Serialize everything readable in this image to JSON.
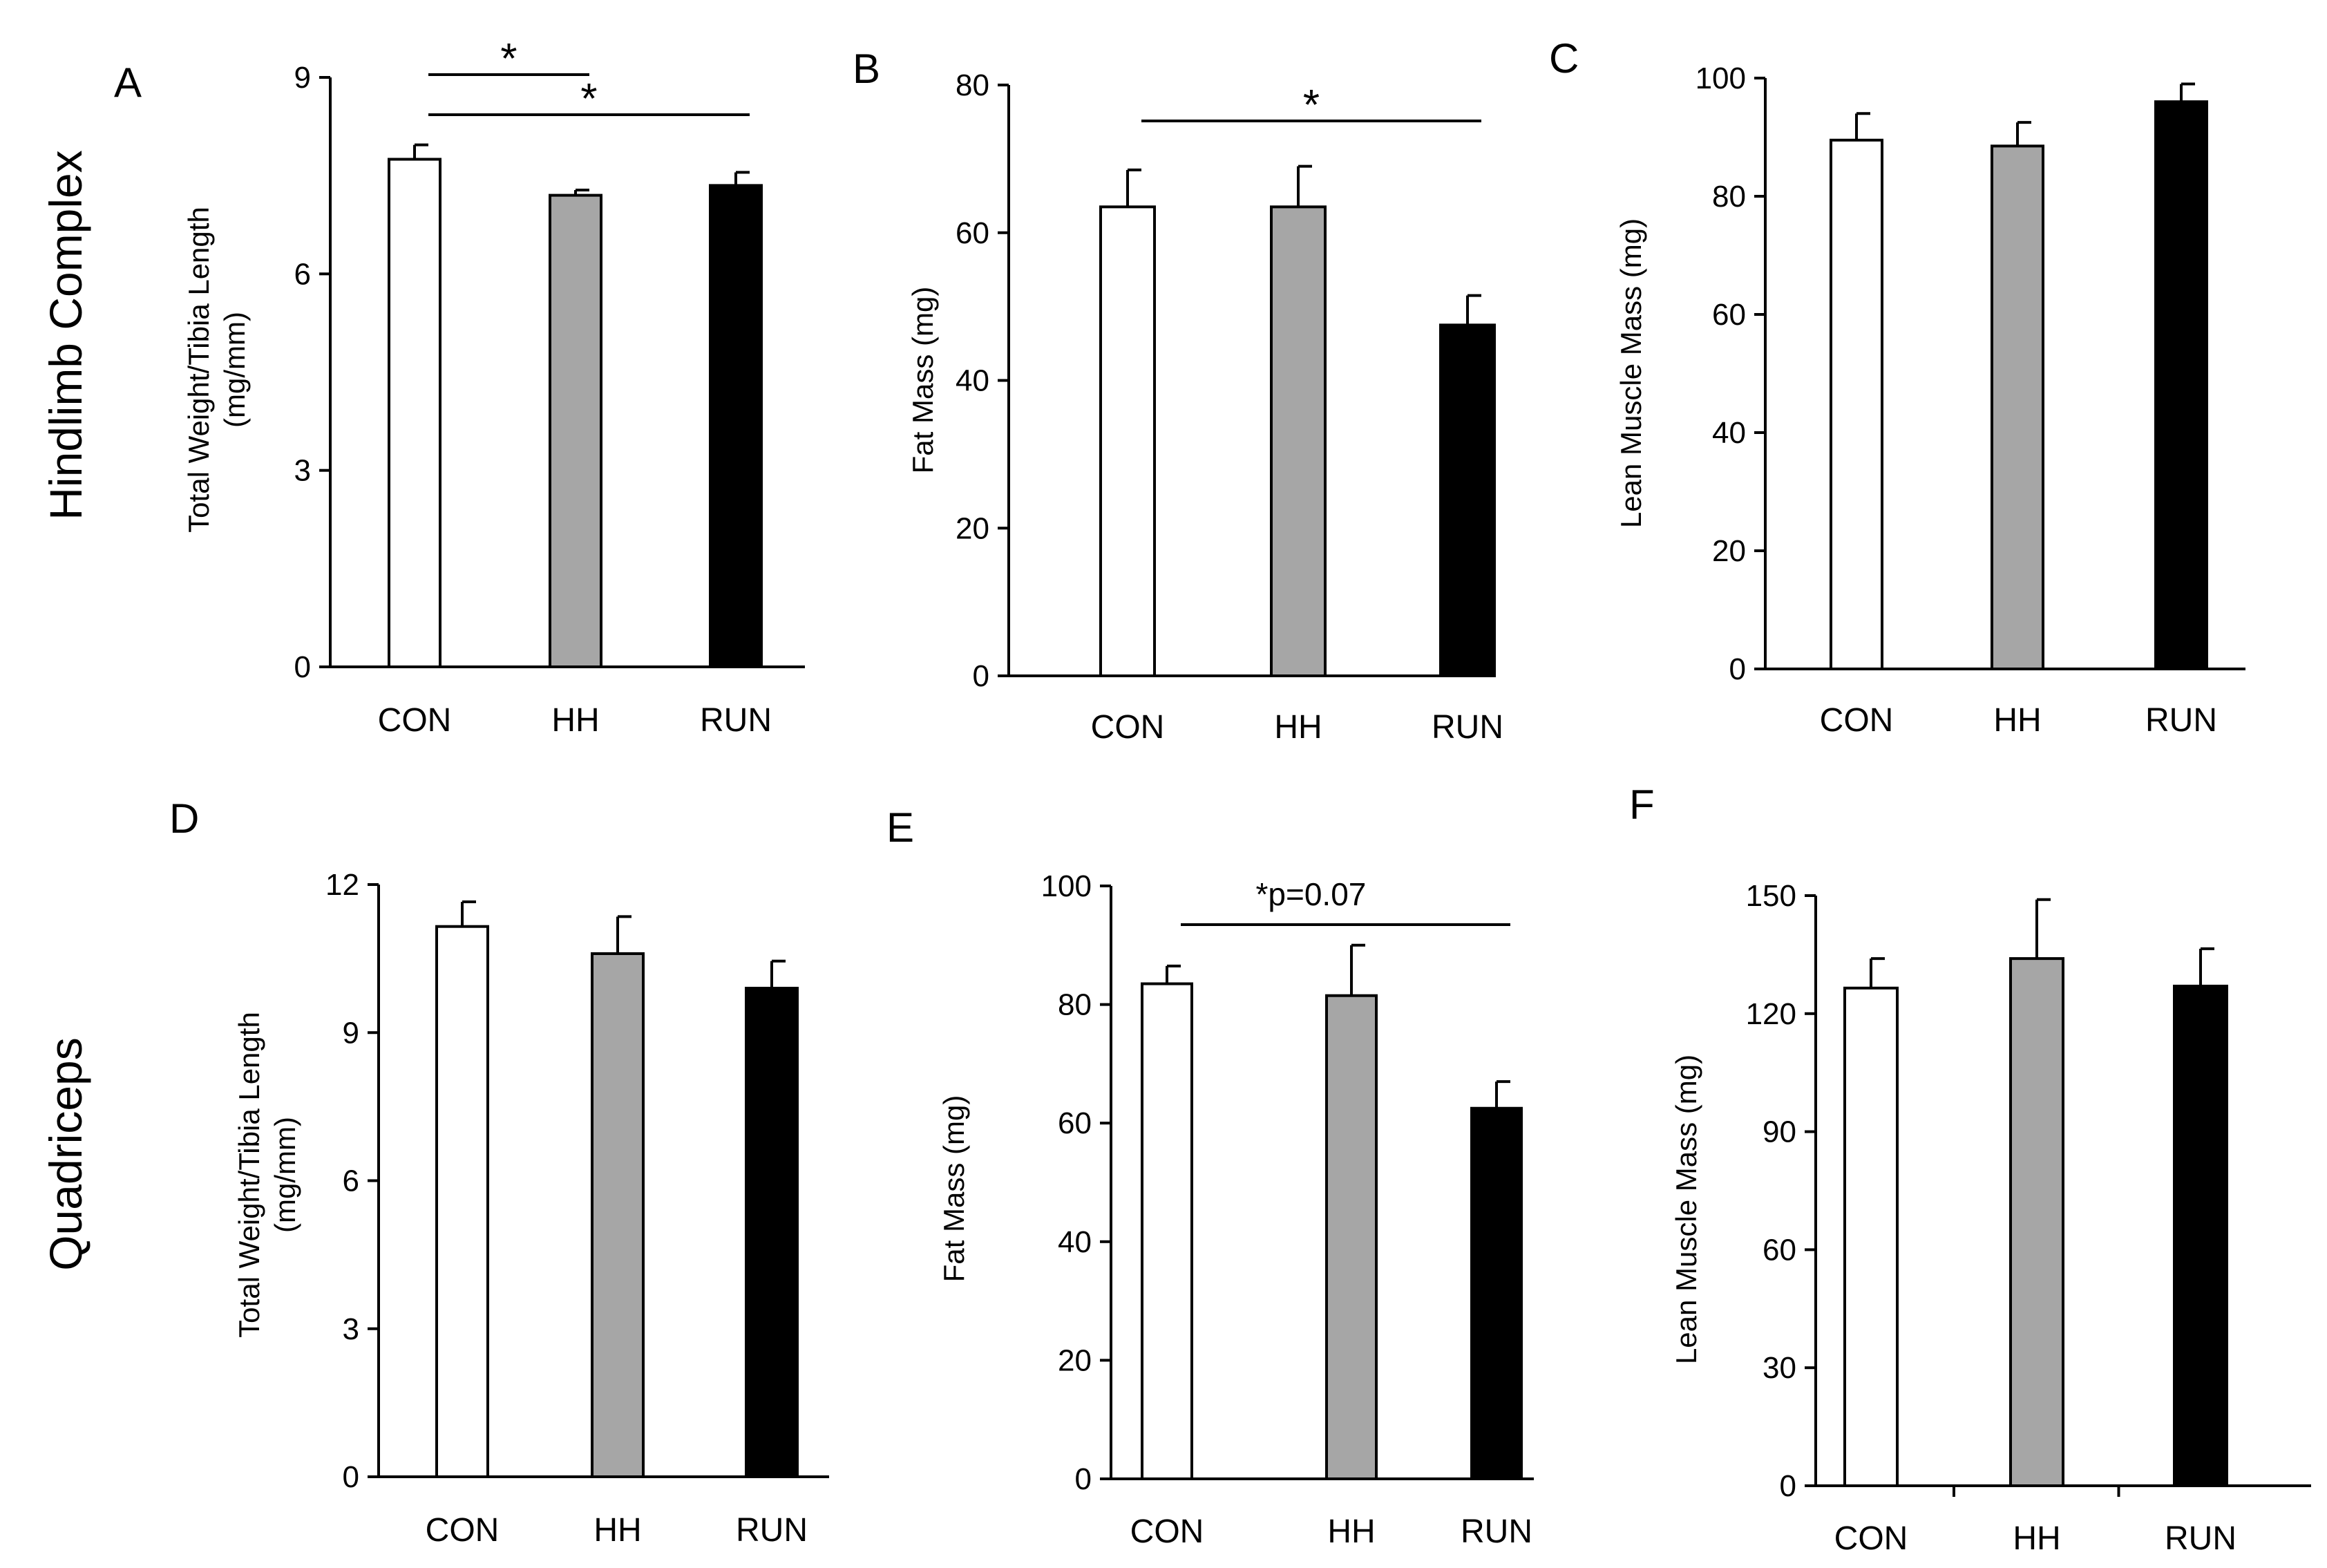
{
  "row_titles": [
    "Hindlimb Complex",
    "Quadriceps"
  ],
  "colors": {
    "CON": "#ffffff",
    "HH": "#a6a6a6",
    "RUN": "#000000",
    "stroke": "#000000"
  },
  "chart_data": [
    {
      "panel": "A",
      "type": "bar",
      "categories": [
        "CON",
        "HH",
        "RUN"
      ],
      "values": [
        7.75,
        7.2,
        7.35
      ],
      "errors": [
        0.22,
        0.08,
        0.2
      ],
      "ylabel": [
        "Total Weight/Tibia Length",
        "(mg/mm)"
      ],
      "ylim": [
        0,
        9
      ],
      "yticks": [
        0,
        3,
        6,
        9
      ],
      "significance": [
        {
          "from": "CON",
          "to": "HH",
          "label": "*"
        },
        {
          "from": "CON",
          "to": "RUN",
          "label": "*"
        }
      ]
    },
    {
      "panel": "B",
      "type": "bar",
      "categories": [
        "CON",
        "HH",
        "RUN"
      ],
      "values": [
        63.5,
        63.5,
        47.5
      ],
      "errors": [
        5,
        5.5,
        4
      ],
      "ylabel": [
        "Fat Mass (mg)"
      ],
      "ylim": [
        0,
        80
      ],
      "yticks": [
        0,
        20,
        40,
        60,
        80
      ],
      "significance": [
        {
          "from": "CON",
          "to": "RUN",
          "label": "*"
        }
      ]
    },
    {
      "panel": "C",
      "type": "bar",
      "categories": [
        "CON",
        "HH",
        "RUN"
      ],
      "values": [
        89.5,
        88.5,
        96
      ],
      "errors": [
        4.5,
        4,
        3
      ],
      "ylabel": [
        "Lean Muscle Mass (mg)"
      ],
      "ylim": [
        0,
        100
      ],
      "yticks": [
        0,
        20,
        40,
        60,
        80,
        100
      ],
      "significance": []
    },
    {
      "panel": "D",
      "type": "bar",
      "categories": [
        "CON",
        "HH",
        "RUN"
      ],
      "values": [
        11.15,
        10.6,
        9.9
      ],
      "errors": [
        0.5,
        0.75,
        0.55
      ],
      "ylabel": [
        "Total Weight/Tibia Length",
        "(mg/mm)"
      ],
      "ylim": [
        0,
        12
      ],
      "yticks": [
        0,
        3,
        6,
        9,
        12
      ],
      "significance": []
    },
    {
      "panel": "E",
      "type": "bar",
      "categories": [
        "CON",
        "HH",
        "RUN"
      ],
      "values": [
        83.5,
        81.5,
        62.5
      ],
      "errors": [
        3,
        8.5,
        4.5
      ],
      "ylabel": [
        "Fat Mass (mg)"
      ],
      "ylim": [
        0,
        100
      ],
      "yticks": [
        0,
        20,
        40,
        60,
        80,
        100
      ],
      "significance": [
        {
          "from": "CON",
          "to": "RUN",
          "label": "*p=0.07"
        }
      ]
    },
    {
      "panel": "F",
      "type": "bar",
      "categories": [
        "CON",
        "HH",
        "RUN"
      ],
      "values": [
        126.5,
        134,
        127
      ],
      "errors": [
        7.5,
        15,
        9.5
      ],
      "ylabel": [
        "Lean Muscle Mass (mg)"
      ],
      "ylim": [
        0,
        150
      ],
      "yticks": [
        0,
        30,
        60,
        90,
        120,
        150
      ],
      "separator_ticks": true,
      "significance": []
    }
  ]
}
